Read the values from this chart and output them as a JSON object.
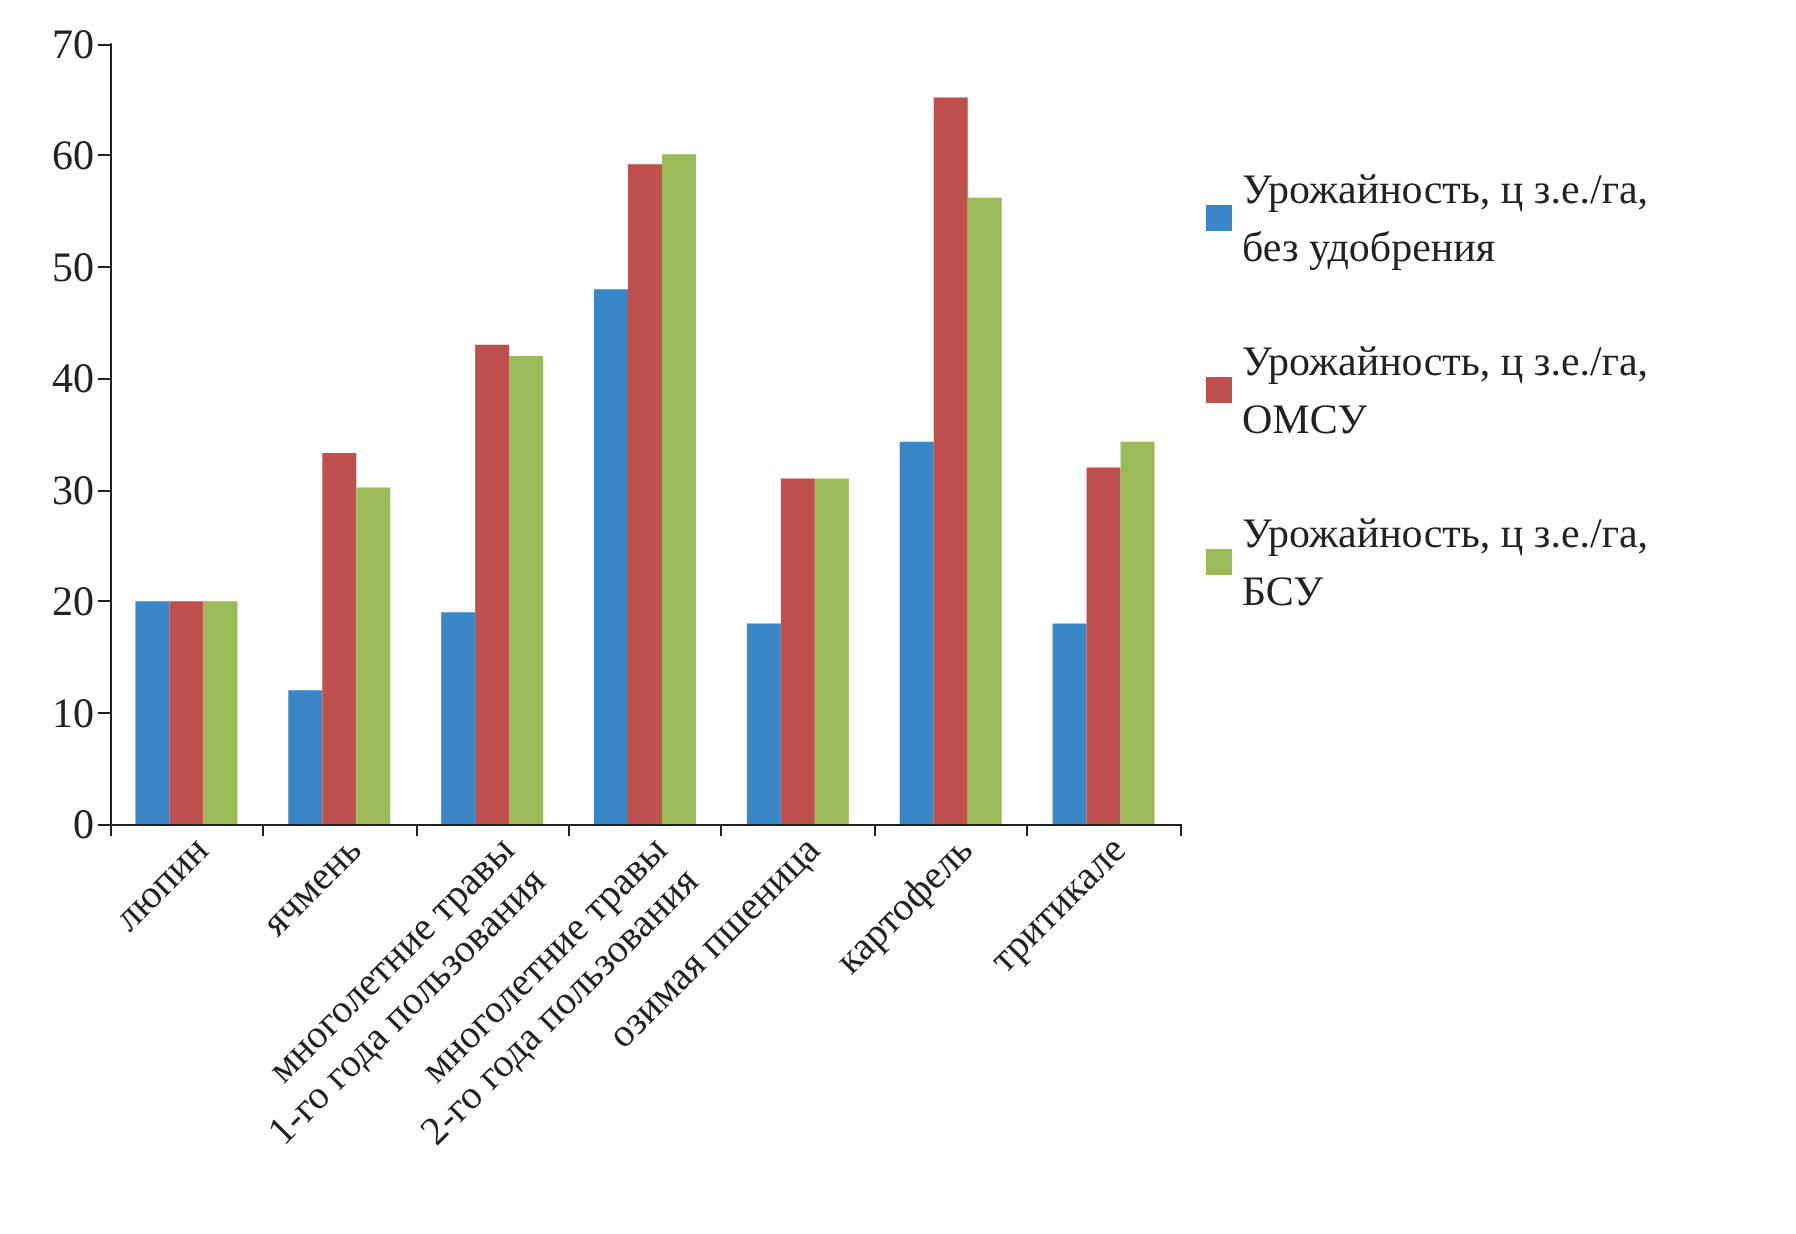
{
  "chart_data": {
    "type": "bar",
    "categories": [
      "люпин",
      "ячмень",
      "многолетние травы\n1-го года пользования",
      "многолетние травы\n2-го года пользования",
      "озимая пшеница",
      "картофель",
      "тритикале"
    ],
    "series": [
      {
        "name": "Урожайность, ц з.е./га,\nбез удобрения",
        "color": "#3a87c8",
        "values": [
          20,
          12,
          19,
          48,
          18,
          34.3,
          18
        ]
      },
      {
        "name": "Урожайность, ц з.е./га,\nОМСУ",
        "color": "#c0504d",
        "values": [
          20,
          33.3,
          43,
          59.2,
          31,
          65.2,
          32
        ]
      },
      {
        "name": "Урожайность, ц з.е./га,\nБСУ",
        "color": "#9bbb59",
        "values": [
          20,
          30.2,
          42,
          60.1,
          31,
          56.2,
          34.3
        ]
      }
    ],
    "ylim": [
      0,
      70
    ],
    "yticks": [
      0,
      10,
      20,
      30,
      40,
      50,
      60,
      70
    ],
    "grid": false,
    "legend": "right"
  }
}
